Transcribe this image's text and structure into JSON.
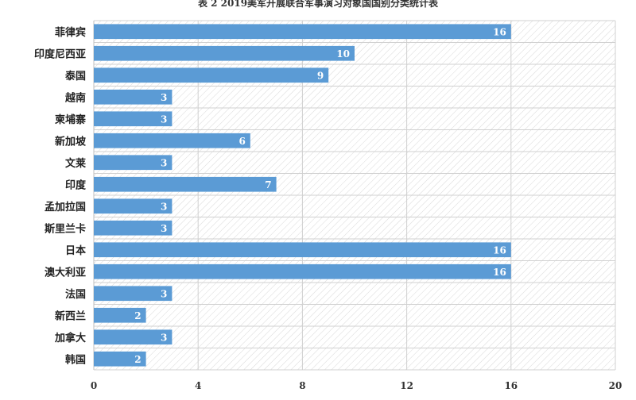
{
  "chart_data": {
    "type": "bar",
    "orientation": "horizontal",
    "title": "表 2 2019美军开展联合军事演习对象国国别分类统计表",
    "categories": [
      "菲律宾",
      "印度尼西亚",
      "泰国",
      "越南",
      "柬埔寨",
      "新加坡",
      "文莱",
      "印度",
      "孟加拉国",
      "斯里兰卡",
      "日本",
      "澳大利亚",
      "法国",
      "新西兰",
      "加拿大",
      "韩国"
    ],
    "values": [
      16,
      10,
      9,
      3,
      3,
      6,
      3,
      7,
      3,
      3,
      16,
      16,
      3,
      2,
      3,
      2
    ],
    "xlim": [
      0,
      20
    ],
    "xticks": [
      0,
      4,
      8,
      12,
      16,
      20
    ],
    "xlabel": "",
    "ylabel": "",
    "grid": true,
    "bar_color": "#5b9bd5",
    "label_color": "#ffffff"
  }
}
